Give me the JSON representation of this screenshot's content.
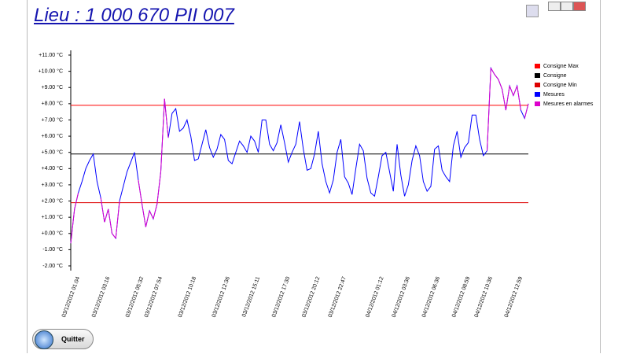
{
  "window": {
    "title": "Lieu : 1 000 670 PII 007",
    "button": "Quitter"
  },
  "chart_data": {
    "type": "line",
    "ylim": [
      -2,
      11
    ],
    "yticks": [
      {
        "value": 11,
        "label": "+11.00 °C"
      },
      {
        "value": 10,
        "label": "+10.00 °C"
      },
      {
        "value": 9,
        "label": "+9.00 °C"
      },
      {
        "value": 8,
        "label": "+8.00 °C"
      },
      {
        "value": 7,
        "label": "+7.00 °C"
      },
      {
        "value": 6,
        "label": "+6.00 °C"
      },
      {
        "value": 5,
        "label": "+5.00 °C"
      },
      {
        "value": 4,
        "label": "+4.00 °C"
      },
      {
        "value": 3,
        "label": "+3.00 °C"
      },
      {
        "value": 2,
        "label": "+2.00 °C"
      },
      {
        "value": 1,
        "label": "+1.00 °C"
      },
      {
        "value": 0,
        "label": "+0.00 °C"
      },
      {
        "value": -1,
        "label": "-1.00 °C"
      },
      {
        "value": -2,
        "label": "-2.00 °C"
      }
    ],
    "reference_lines": [
      {
        "name": "Consigne Max",
        "color": "#ff0000",
        "value": 7.9
      },
      {
        "name": "Consigne",
        "color": "#000000",
        "value": 4.9
      },
      {
        "name": "Consigne Min",
        "color": "#dd0000",
        "value": 1.9
      }
    ],
    "categories": [
      null,
      null,
      "03/12/2012 01:04",
      null,
      null,
      null,
      null,
      null,
      null,
      null,
      "03/12/2012 03:16",
      null,
      null,
      null,
      null,
      null,
      null,
      null,
      null,
      "03/12/2012 05:32",
      null,
      null,
      null,
      null,
      "03/12/2012 07:54",
      null,
      null,
      null,
      null,
      null,
      null,
      null,
      null,
      "03/12/2012 10:18",
      null,
      null,
      null,
      null,
      null,
      null,
      null,
      null,
      "03/12/2012 12:36",
      null,
      null,
      null,
      null,
      null,
      null,
      null,
      "03/12/2012 15:11",
      null,
      null,
      null,
      null,
      null,
      null,
      null,
      "03/12/2012 17:30",
      null,
      null,
      null,
      null,
      null,
      null,
      null,
      "03/12/2012 20:12",
      null,
      null,
      null,
      null,
      null,
      null,
      "03/12/2012 22:47",
      null,
      null,
      null,
      null,
      null,
      null,
      null,
      null,
      null,
      "04/12/2012 01:12",
      null,
      null,
      null,
      null,
      null,
      null,
      "04/12/2012 03:36",
      null,
      null,
      null,
      null,
      null,
      null,
      null,
      "04/12/2012 06:36",
      null,
      null,
      null,
      null,
      null,
      null,
      null,
      "04/12/2012 08:59",
      null,
      null,
      null,
      null,
      null,
      "04/12/2012 10:36",
      null,
      null,
      null,
      null,
      null,
      null,
      null,
      "04/12/2012 12:59",
      null,
      null
    ],
    "series": [
      {
        "name": "Mesures",
        "color": "#0000ff",
        "values": [
          -0.6,
          1.5,
          2.5,
          3.2,
          4.0,
          4.5,
          4.9,
          3.2,
          2.2,
          0.7,
          1.5,
          0.0,
          -0.3,
          2.0,
          2.9,
          3.8,
          4.4,
          5.0,
          3.3,
          1.8,
          0.4,
          1.4,
          0.9,
          1.8,
          3.8,
          8.3,
          5.9,
          7.4,
          7.7,
          6.3,
          6.5,
          7.0,
          6.0,
          4.5,
          4.6,
          5.5,
          6.4,
          5.3,
          4.7,
          5.2,
          6.1,
          5.8,
          4.5,
          4.3,
          5.0,
          5.7,
          5.4,
          5.0,
          6.0,
          5.7,
          5.0,
          7.0,
          7.0,
          5.5,
          5.1,
          5.6,
          6.7,
          5.6,
          4.4,
          5.0,
          5.5,
          6.9,
          5.2,
          3.9,
          4.0,
          4.9,
          6.3,
          4.3,
          3.2,
          2.5,
          3.3,
          5.0,
          5.8,
          3.5,
          3.1,
          2.4,
          4.0,
          5.5,
          5.1,
          3.4,
          2.5,
          2.3,
          3.5,
          4.8,
          5.0,
          3.8,
          2.6,
          5.5,
          3.6,
          2.3,
          3.0,
          4.5,
          5.4,
          4.8,
          3.2,
          2.6,
          2.9,
          5.2,
          5.4,
          3.9,
          3.5,
          3.2,
          5.4,
          6.3,
          4.7,
          5.3,
          5.6,
          7.3,
          7.3,
          5.8,
          4.8,
          5.1,
          10.2,
          9.8,
          9.5,
          8.9,
          7.6,
          9.1,
          8.5,
          9.1,
          7.6,
          7.1,
          8.0
        ]
      }
    ],
    "alarm": {
      "name": "Mesures en alarmes",
      "color": "#dd00cc"
    }
  }
}
